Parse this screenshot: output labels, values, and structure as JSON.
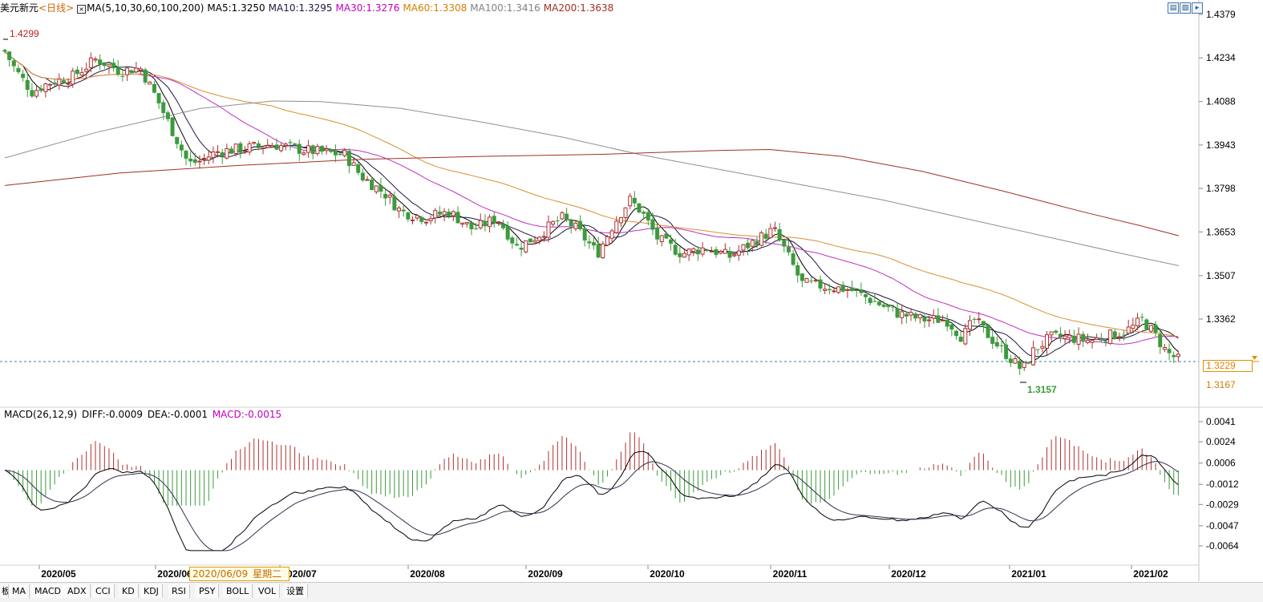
{
  "header": {
    "title": "美元新元",
    "period": "<日线>",
    "ma_params": "MA(5,10,30,60,100,200)",
    "ma5": "MA5:1.3250",
    "ma10": "MA10:1.3295",
    "ma30": "MA30:1.3276",
    "ma60": "MA60:1.3308",
    "ma100": "MA100:1.3416",
    "ma200": "MA200:1.3638"
  },
  "macd_header": {
    "params": "MACD(26,12,9)",
    "diff": "DIFF:-0.0009",
    "dea": "DEA:-0.0001",
    "macd": "MACD:-0.0015"
  },
  "price_axis": [
    "1.4379",
    "1.4234",
    "1.4088",
    "1.3943",
    "1.3798",
    "1.3653",
    "1.3507",
    "1.3362"
  ],
  "current_price": "1.3229",
  "low_label_axis": "1.3167",
  "high_marker": "1.4299",
  "low_marker": "1.3157",
  "macd_axis": [
    "0.0041",
    "0.0024",
    "0.0006",
    "-0.0012",
    "-0.0029",
    "-0.0047",
    "-0.0064"
  ],
  "x_labels": [
    "2020/05",
    "2020/06",
    "2020/07",
    "2020/08",
    "2020/09",
    "2020/10",
    "2020/11",
    "2020/12",
    "2021/01",
    "2021/02"
  ],
  "tooltip": {
    "date": "2020/06/09",
    "weekday": "星期二"
  },
  "tabs": [
    "板",
    "MA",
    "MACD",
    "ADX",
    "CCI",
    "KD",
    "KDJ",
    "RSI",
    "PSY",
    "BOLL",
    "VOL",
    "设置"
  ],
  "colors": {
    "up": "#b03030",
    "down": "#3c9a3c",
    "ma5": "#000000",
    "ma10": "#1a1a40",
    "ma30": "#c030c0",
    "ma60": "#d89030",
    "ma100": "#909090",
    "ma200": "#a03020",
    "header_red": "#cc0000",
    "header_magenta": "#c000c0",
    "header_orange": "#d08000",
    "header_gray": "#808080",
    "header_brown": "#a03020"
  }
}
